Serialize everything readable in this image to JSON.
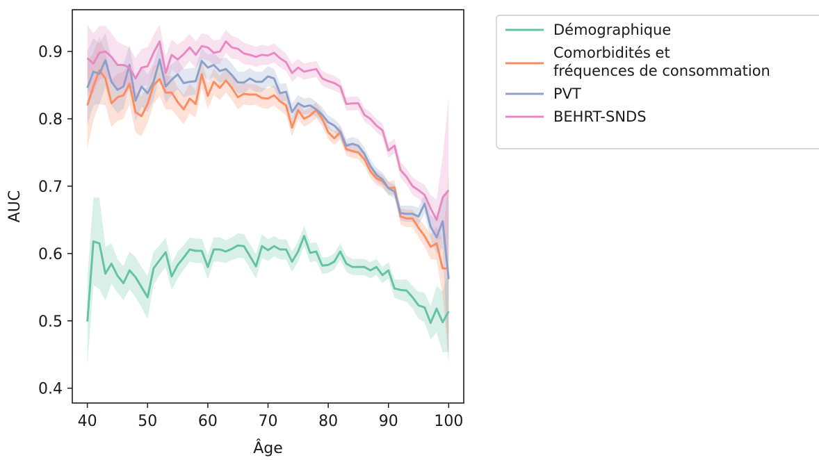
{
  "chart_data": {
    "type": "line",
    "xlabel": "Âge",
    "ylabel": "AUC",
    "xlim": [
      37.5,
      102.5
    ],
    "ylim": [
      0.378,
      0.962
    ],
    "x_ticks": [
      40,
      50,
      60,
      70,
      80,
      90,
      100
    ],
    "y_ticks": [
      0.4,
      0.5,
      0.6,
      0.7,
      0.8,
      0.9
    ],
    "grid": false,
    "legend_position": "outside-top-right",
    "x": [
      40,
      41,
      42,
      43,
      44,
      45,
      46,
      47,
      48,
      49,
      50,
      51,
      52,
      53,
      54,
      55,
      56,
      57,
      58,
      59,
      60,
      61,
      62,
      63,
      64,
      65,
      66,
      67,
      68,
      69,
      70,
      71,
      72,
      73,
      74,
      75,
      76,
      77,
      78,
      79,
      80,
      81,
      82,
      83,
      84,
      85,
      86,
      87,
      88,
      89,
      90,
      91,
      92,
      93,
      94,
      95,
      96,
      97,
      98,
      99,
      100
    ],
    "series": [
      {
        "name": "Démographique",
        "color": "#66c2a5",
        "values": [
          0.499,
          0.618,
          0.615,
          0.57,
          0.585,
          0.567,
          0.556,
          0.575,
          0.565,
          0.55,
          0.535,
          0.578,
          0.59,
          0.602,
          0.566,
          0.583,
          0.594,
          0.606,
          0.604,
          0.604,
          0.58,
          0.606,
          0.606,
          0.603,
          0.607,
          0.612,
          0.611,
          0.596,
          0.581,
          0.611,
          0.605,
          0.611,
          0.606,
          0.606,
          0.588,
          0.603,
          0.626,
          0.601,
          0.603,
          0.582,
          0.583,
          0.588,
          0.603,
          0.585,
          0.58,
          0.58,
          0.58,
          0.575,
          0.58,
          0.568,
          0.575,
          0.548,
          0.546,
          0.545,
          0.535,
          0.523,
          0.52,
          0.497,
          0.518,
          0.498,
          0.514
        ],
        "band": [
          0.065,
          0.065,
          0.068,
          0.04,
          0.03,
          0.025,
          0.025,
          0.028,
          0.03,
          0.03,
          0.032,
          0.025,
          0.022,
          0.022,
          0.02,
          0.02,
          0.018,
          0.018,
          0.018,
          0.018,
          0.018,
          0.018,
          0.018,
          0.017,
          0.017,
          0.018,
          0.018,
          0.018,
          0.018,
          0.018,
          0.016,
          0.015,
          0.015,
          0.015,
          0.015,
          0.015,
          0.015,
          0.014,
          0.014,
          0.012,
          0.012,
          0.012,
          0.012,
          0.012,
          0.012,
          0.012,
          0.012,
          0.012,
          0.012,
          0.012,
          0.012,
          0.014,
          0.015,
          0.017,
          0.017,
          0.02,
          0.022,
          0.025,
          0.035,
          0.045,
          0.06
        ]
      },
      {
        "name": "Comorbidités et\nfréquences de consommation",
        "color": "#fc8d62",
        "values": [
          0.82,
          0.848,
          0.872,
          0.86,
          0.823,
          0.832,
          0.835,
          0.852,
          0.81,
          0.804,
          0.822,
          0.85,
          0.859,
          0.839,
          0.839,
          0.825,
          0.814,
          0.83,
          0.822,
          0.866,
          0.834,
          0.855,
          0.846,
          0.857,
          0.846,
          0.832,
          0.837,
          0.836,
          0.836,
          0.831,
          0.83,
          0.835,
          0.826,
          0.82,
          0.787,
          0.813,
          0.8,
          0.805,
          0.813,
          0.8,
          0.78,
          0.771,
          0.78,
          0.755,
          0.752,
          0.75,
          0.74,
          0.722,
          0.712,
          0.707,
          0.697,
          0.698,
          0.655,
          0.652,
          0.652,
          0.638,
          0.626,
          0.61,
          0.615,
          0.578,
          0.578
        ],
        "band": [
          0.065,
          0.05,
          0.05,
          0.04,
          0.035,
          0.035,
          0.035,
          0.03,
          0.03,
          0.03,
          0.028,
          0.028,
          0.025,
          0.025,
          0.025,
          0.022,
          0.022,
          0.022,
          0.02,
          0.02,
          0.02,
          0.02,
          0.018,
          0.018,
          0.018,
          0.018,
          0.016,
          0.016,
          0.015,
          0.015,
          0.015,
          0.015,
          0.014,
          0.014,
          0.013,
          0.013,
          0.012,
          0.012,
          0.012,
          0.011,
          0.01,
          0.01,
          0.01,
          0.01,
          0.01,
          0.01,
          0.01,
          0.01,
          0.01,
          0.01,
          0.01,
          0.011,
          0.012,
          0.013,
          0.013,
          0.014,
          0.016,
          0.018,
          0.025,
          0.04,
          0.14
        ]
      },
      {
        "name": "PVT",
        "color": "#8da0cb",
        "values": [
          0.846,
          0.87,
          0.867,
          0.887,
          0.855,
          0.843,
          0.848,
          0.88,
          0.827,
          0.848,
          0.838,
          0.855,
          0.888,
          0.848,
          0.858,
          0.866,
          0.853,
          0.855,
          0.856,
          0.886,
          0.876,
          0.88,
          0.871,
          0.874,
          0.865,
          0.854,
          0.854,
          0.86,
          0.855,
          0.855,
          0.863,
          0.86,
          0.838,
          0.84,
          0.81,
          0.823,
          0.818,
          0.82,
          0.814,
          0.806,
          0.795,
          0.79,
          0.781,
          0.76,
          0.763,
          0.76,
          0.748,
          0.73,
          0.717,
          0.71,
          0.697,
          0.692,
          0.66,
          0.659,
          0.659,
          0.655,
          0.674,
          0.64,
          0.624,
          0.648,
          0.562
        ],
        "band": [
          0.055,
          0.05,
          0.045,
          0.04,
          0.035,
          0.035,
          0.033,
          0.03,
          0.03,
          0.03,
          0.028,
          0.027,
          0.025,
          0.025,
          0.023,
          0.022,
          0.021,
          0.02,
          0.02,
          0.019,
          0.019,
          0.018,
          0.018,
          0.017,
          0.017,
          0.016,
          0.016,
          0.015,
          0.015,
          0.015,
          0.015,
          0.014,
          0.014,
          0.013,
          0.013,
          0.012,
          0.012,
          0.012,
          0.011,
          0.011,
          0.01,
          0.01,
          0.01,
          0.01,
          0.01,
          0.01,
          0.01,
          0.01,
          0.01,
          0.01,
          0.01,
          0.01,
          0.011,
          0.012,
          0.012,
          0.013,
          0.015,
          0.018,
          0.025,
          0.04,
          0.13
        ]
      },
      {
        "name": "BEHRT-SNDS",
        "color": "#e78ac3",
        "values": [
          0.89,
          0.882,
          0.898,
          0.9,
          0.892,
          0.88,
          0.88,
          0.876,
          0.86,
          0.876,
          0.878,
          0.898,
          0.915,
          0.868,
          0.895,
          0.888,
          0.896,
          0.906,
          0.895,
          0.908,
          0.906,
          0.898,
          0.9,
          0.915,
          0.906,
          0.904,
          0.897,
          0.895,
          0.892,
          0.895,
          0.894,
          0.898,
          0.89,
          0.884,
          0.868,
          0.876,
          0.87,
          0.872,
          0.874,
          0.86,
          0.856,
          0.853,
          0.848,
          0.822,
          0.823,
          0.823,
          0.806,
          0.8,
          0.79,
          0.783,
          0.753,
          0.76,
          0.724,
          0.714,
          0.7,
          0.694,
          0.687,
          0.667,
          0.65,
          0.683,
          0.694
        ],
        "band": [
          0.05,
          0.045,
          0.04,
          0.038,
          0.035,
          0.035,
          0.03,
          0.03,
          0.03,
          0.028,
          0.028,
          0.026,
          0.025,
          0.024,
          0.023,
          0.022,
          0.021,
          0.02,
          0.02,
          0.019,
          0.019,
          0.018,
          0.018,
          0.017,
          0.017,
          0.016,
          0.016,
          0.015,
          0.015,
          0.015,
          0.014,
          0.014,
          0.014,
          0.013,
          0.013,
          0.013,
          0.012,
          0.012,
          0.012,
          0.011,
          0.011,
          0.011,
          0.01,
          0.01,
          0.01,
          0.01,
          0.01,
          0.01,
          0.01,
          0.01,
          0.011,
          0.011,
          0.012,
          0.012,
          0.013,
          0.013,
          0.015,
          0.02,
          0.03,
          0.06,
          0.14
        ]
      }
    ]
  }
}
